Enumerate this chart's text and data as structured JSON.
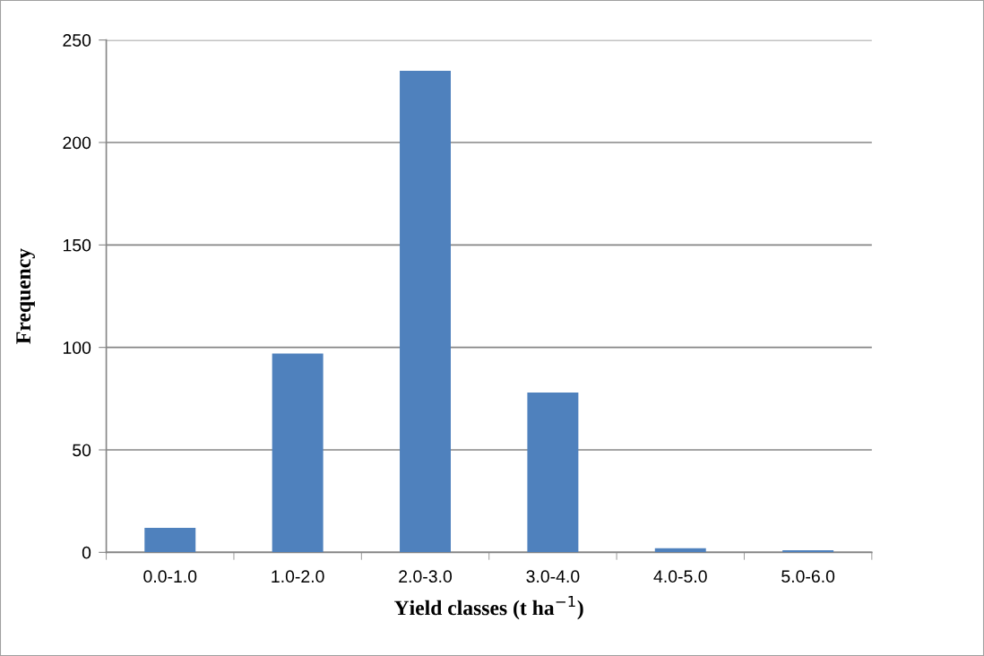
{
  "chart_data": {
    "type": "bar",
    "categories": [
      "0.0-1.0",
      "1.0-2.0",
      "2.0-3.0",
      "3.0-4.0",
      "4.0-5.0",
      "5.0-6.0"
    ],
    "values": [
      12,
      97,
      235,
      78,
      2,
      1
    ],
    "color": "#4f81bd",
    "xlabel": "Yield classes (t ha$^{−1}$)",
    "ylabel": "Frequency",
    "ylim": [
      0,
      250
    ],
    "yticks": [
      0,
      50,
      100,
      150,
      200,
      250
    ],
    "grid": "y"
  }
}
